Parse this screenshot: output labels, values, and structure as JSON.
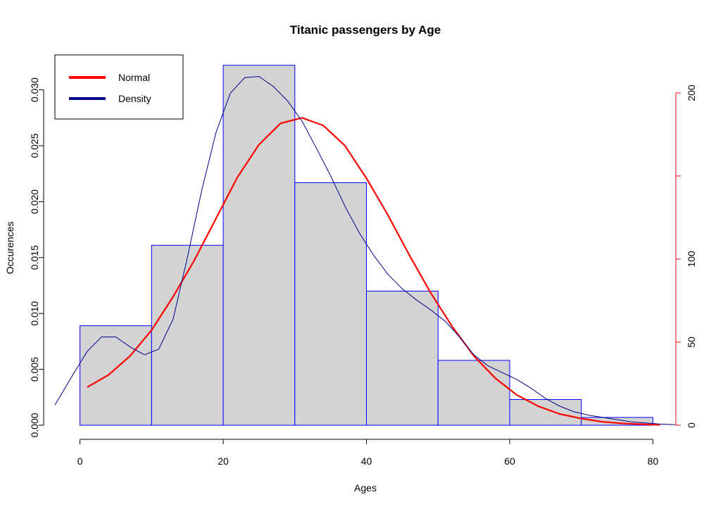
{
  "chart_data": {
    "type": "bar",
    "title": "Titanic passengers by Age",
    "xlabel": "Ages",
    "ylabel": "Occurences",
    "x_ticks": [
      0,
      20,
      40,
      60,
      80
    ],
    "xlim": [
      -3.5,
      83.2
    ],
    "y_left": {
      "ticks": [
        "0.000",
        "0.005",
        "0.010",
        "0.015",
        "0.020",
        "0.025",
        "0.030"
      ],
      "lim": [
        0,
        0.033
      ]
    },
    "y_right": {
      "ticks": [
        "0",
        "50",
        "100",
        "200"
      ],
      "tick_values": [
        0,
        50,
        100,
        150,
        200
      ],
      "lim": [
        0,
        200
      ],
      "color": "#ff0000"
    },
    "histogram": {
      "bin_edges": [
        0,
        10,
        20,
        30,
        40,
        50,
        60,
        70,
        80
      ],
      "densities": [
        0.0089,
        0.0161,
        0.0322,
        0.0217,
        0.012,
        0.0058,
        0.0023,
        0.0007
      ],
      "fill": "#d3d3d3",
      "stroke": "#0000ff"
    },
    "series": [
      {
        "name": "Normal",
        "color": "#ff0000",
        "points": [
          [
            1,
            0.0034
          ],
          [
            4,
            0.0045
          ],
          [
            7,
            0.0062
          ],
          [
            10,
            0.0085
          ],
          [
            13,
            0.0115
          ],
          [
            16,
            0.0148
          ],
          [
            19,
            0.0185
          ],
          [
            22,
            0.0222
          ],
          [
            25,
            0.0251
          ],
          [
            28,
            0.027
          ],
          [
            31,
            0.0275
          ],
          [
            34,
            0.0268
          ],
          [
            37,
            0.025
          ],
          [
            40,
            0.0221
          ],
          [
            43,
            0.0188
          ],
          [
            46,
            0.0152
          ],
          [
            49,
            0.0118
          ],
          [
            52,
            0.0088
          ],
          [
            55,
            0.0062
          ],
          [
            58,
            0.0042
          ],
          [
            61,
            0.0027
          ],
          [
            64,
            0.0017
          ],
          [
            67,
            0.001
          ],
          [
            70,
            0.0006
          ],
          [
            73,
            0.0003
          ],
          [
            76,
            0.00015
          ],
          [
            79,
            7e-05
          ],
          [
            81,
            4e-05
          ]
        ]
      },
      {
        "name": "Density",
        "color": "#00008b",
        "points": [
          [
            -3.5,
            0.0018
          ],
          [
            -1,
            0.0045
          ],
          [
            1,
            0.0066
          ],
          [
            3,
            0.0079
          ],
          [
            5,
            0.0079
          ],
          [
            7,
            0.007
          ],
          [
            9,
            0.0063
          ],
          [
            11,
            0.0068
          ],
          [
            13,
            0.0095
          ],
          [
            15,
            0.015
          ],
          [
            17,
            0.021
          ],
          [
            19,
            0.0262
          ],
          [
            21,
            0.0297
          ],
          [
            23,
            0.0311
          ],
          [
            25,
            0.0312
          ],
          [
            27,
            0.0303
          ],
          [
            29,
            0.029
          ],
          [
            31,
            0.0272
          ],
          [
            33,
            0.0248
          ],
          [
            35,
            0.0223
          ],
          [
            37,
            0.0196
          ],
          [
            39,
            0.0172
          ],
          [
            41,
            0.0152
          ],
          [
            43,
            0.0135
          ],
          [
            45,
            0.0122
          ],
          [
            47,
            0.0112
          ],
          [
            49,
            0.0103
          ],
          [
            51,
            0.0093
          ],
          [
            53,
            0.0079
          ],
          [
            55,
            0.0063
          ],
          [
            57,
            0.0053
          ],
          [
            59,
            0.0047
          ],
          [
            61,
            0.0041
          ],
          [
            63,
            0.0033
          ],
          [
            65,
            0.0024
          ],
          [
            67,
            0.0017
          ],
          [
            69,
            0.0012
          ],
          [
            71,
            0.0009
          ],
          [
            73,
            0.0007
          ],
          [
            75,
            0.0005
          ],
          [
            77,
            0.0003
          ],
          [
            79,
            0.0002
          ],
          [
            81,
            0.0001
          ],
          [
            83.2,
            5e-05
          ]
        ]
      }
    ],
    "legend": {
      "placement": "top-left",
      "entries": [
        "Normal",
        "Density"
      ]
    }
  }
}
